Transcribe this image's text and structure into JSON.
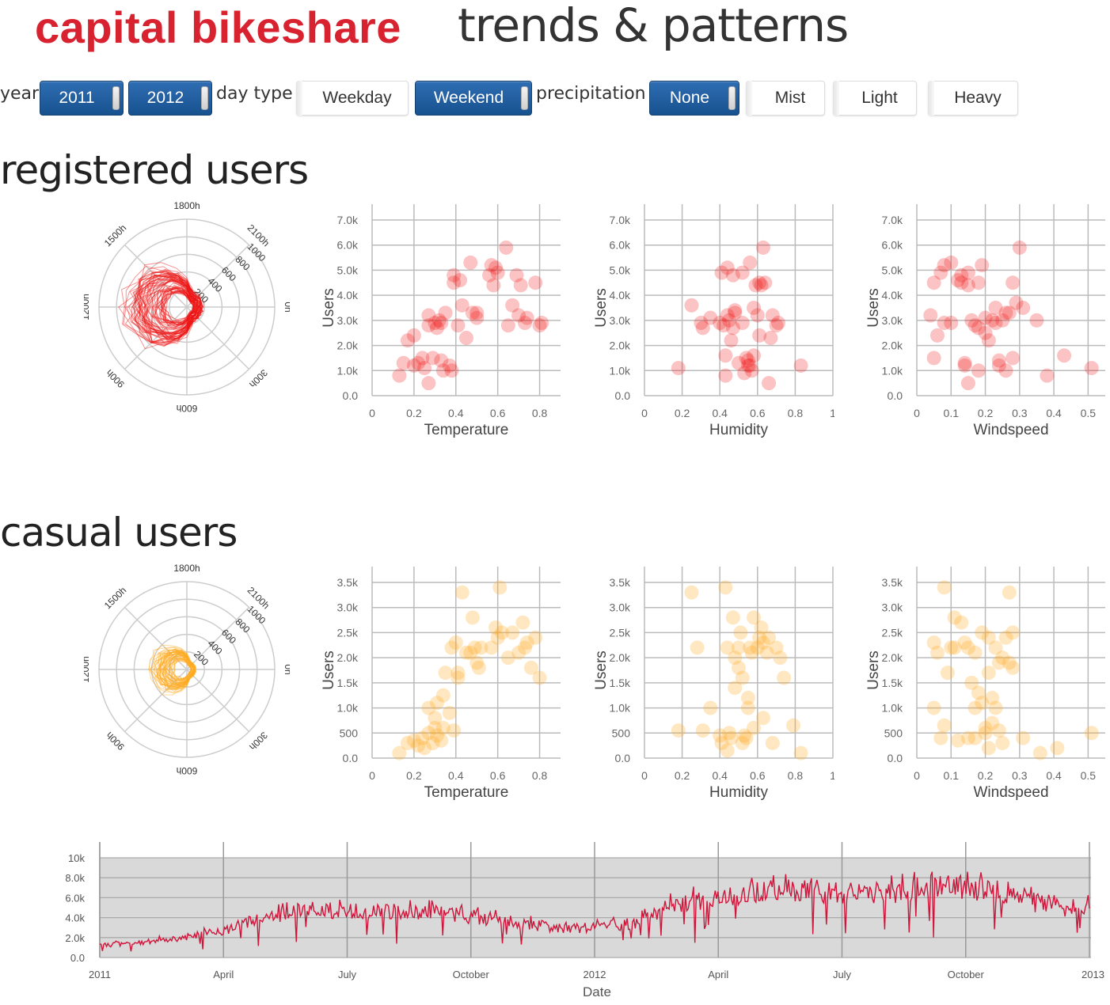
{
  "header": {
    "brand": "capital bikeshare",
    "tagline": "trends & patterns"
  },
  "filters": {
    "year_label": "year",
    "year_options": [
      {
        "label": "2011",
        "on": true
      },
      {
        "label": "2012",
        "on": true
      }
    ],
    "daytype_label": "day type",
    "daytype_options": [
      {
        "label": "Weekday",
        "on": false
      },
      {
        "label": "Weekend",
        "on": true
      }
    ],
    "precip_label": "precipitation",
    "precip_options": [
      {
        "label": "None",
        "on": true
      },
      {
        "label": "Mist",
        "on": false
      },
      {
        "label": "Light",
        "on": false
      },
      {
        "label": "Heavy",
        "on": false
      }
    ]
  },
  "sections": {
    "registered_title": "registered users",
    "casual_title": "casual users"
  },
  "colors": {
    "registered": "#ee1111",
    "casual": "#ffaa22",
    "timeline_line": "#d0143a",
    "grid": "#bbbbbb"
  },
  "radial": {
    "hour_labels": [
      "0h",
      "300h",
      "600h",
      "900h",
      "1200h",
      "1500h",
      "1800h",
      "2100h"
    ],
    "radius_labels": [
      "200",
      "400",
      "600",
      "800",
      "1000"
    ]
  },
  "chart_data": [
    {
      "type": "scatter",
      "group": "registered",
      "title": "",
      "xlabel": "Temperature",
      "ylabel": "Users",
      "xlim": [
        0,
        0.9
      ],
      "ylim": [
        0,
        7000
      ],
      "xticks": [
        "0",
        "0.2",
        "0.4",
        "0.6",
        "0.8"
      ],
      "yticks": [
        "0.0",
        "1.0k",
        "2.0k",
        "3.0k",
        "4.0k",
        "5.0k",
        "6.0k",
        "7.0k"
      ],
      "points": [
        [
          0.13,
          800
        ],
        [
          0.15,
          1300
        ],
        [
          0.17,
          2200
        ],
        [
          0.2,
          2400
        ],
        [
          0.2,
          1200
        ],
        [
          0.22,
          1300
        ],
        [
          0.24,
          1500
        ],
        [
          0.25,
          1100
        ],
        [
          0.27,
          500
        ],
        [
          0.27,
          2800
        ],
        [
          0.27,
          3200
        ],
        [
          0.29,
          1500
        ],
        [
          0.3,
          2900
        ],
        [
          0.31,
          2700
        ],
        [
          0.32,
          3000
        ],
        [
          0.33,
          1400
        ],
        [
          0.33,
          2900
        ],
        [
          0.34,
          1000
        ],
        [
          0.35,
          3300
        ],
        [
          0.37,
          1200
        ],
        [
          0.38,
          1000
        ],
        [
          0.39,
          4800
        ],
        [
          0.39,
          4500
        ],
        [
          0.41,
          2800
        ],
        [
          0.42,
          4600
        ],
        [
          0.43,
          3600
        ],
        [
          0.45,
          2300
        ],
        [
          0.47,
          5300
        ],
        [
          0.48,
          3300
        ],
        [
          0.5,
          3300
        ],
        [
          0.5,
          3100
        ],
        [
          0.56,
          4800
        ],
        [
          0.57,
          5200
        ],
        [
          0.58,
          4400
        ],
        [
          0.59,
          5100
        ],
        [
          0.6,
          4900
        ],
        [
          0.64,
          5900
        ],
        [
          0.65,
          2800
        ],
        [
          0.67,
          3600
        ],
        [
          0.69,
          4800
        ],
        [
          0.7,
          3200
        ],
        [
          0.71,
          4400
        ],
        [
          0.73,
          2900
        ],
        [
          0.74,
          3100
        ],
        [
          0.78,
          4500
        ],
        [
          0.8,
          2800
        ],
        [
          0.81,
          2900
        ]
      ]
    },
    {
      "type": "scatter",
      "group": "registered",
      "title": "",
      "xlabel": "Humidity",
      "ylabel": "Users",
      "xlim": [
        0,
        1.0
      ],
      "ylim": [
        0,
        7000
      ],
      "xticks": [
        "0",
        "0.2",
        "0.4",
        "0.6",
        "0.8",
        "1"
      ],
      "yticks": [
        "0.0",
        "1.0k",
        "2.0k",
        "3.0k",
        "4.0k",
        "5.0k",
        "6.0k",
        "7.0k"
      ],
      "points": [
        [
          0.18,
          1100
        ],
        [
          0.25,
          3600
        ],
        [
          0.3,
          2900
        ],
        [
          0.31,
          2700
        ],
        [
          0.35,
          3100
        ],
        [
          0.4,
          2900
        ],
        [
          0.41,
          4900
        ],
        [
          0.42,
          2800
        ],
        [
          0.43,
          1600
        ],
        [
          0.43,
          800
        ],
        [
          0.44,
          3200
        ],
        [
          0.44,
          5100
        ],
        [
          0.45,
          3000
        ],
        [
          0.46,
          2200
        ],
        [
          0.47,
          4800
        ],
        [
          0.47,
          2700
        ],
        [
          0.48,
          3400
        ],
        [
          0.48,
          3300
        ],
        [
          0.5,
          1300
        ],
        [
          0.52,
          4900
        ],
        [
          0.52,
          2900
        ],
        [
          0.53,
          900
        ],
        [
          0.54,
          1500
        ],
        [
          0.55,
          1200
        ],
        [
          0.55,
          1400
        ],
        [
          0.56,
          5300
        ],
        [
          0.56,
          1200
        ],
        [
          0.57,
          1000
        ],
        [
          0.58,
          1600
        ],
        [
          0.58,
          3500
        ],
        [
          0.59,
          4400
        ],
        [
          0.6,
          3200
        ],
        [
          0.61,
          2400
        ],
        [
          0.61,
          4500
        ],
        [
          0.62,
          4400
        ],
        [
          0.63,
          5900
        ],
        [
          0.64,
          4500
        ],
        [
          0.66,
          500
        ],
        [
          0.67,
          2300
        ],
        [
          0.68,
          3200
        ],
        [
          0.7,
          2800
        ],
        [
          0.71,
          2900
        ],
        [
          0.83,
          1200
        ]
      ]
    },
    {
      "type": "scatter",
      "group": "registered",
      "title": "",
      "xlabel": "Windspeed",
      "ylabel": "Users",
      "xlim": [
        0,
        0.55
      ],
      "ylim": [
        0,
        7000
      ],
      "xticks": [
        "0",
        "0.1",
        "0.2",
        "0.3",
        "0.4",
        "0.5"
      ],
      "yticks": [
        "0.0",
        "1.0k",
        "2.0k",
        "3.0k",
        "4.0k",
        "5.0k",
        "6.0k",
        "7.0k"
      ],
      "points": [
        [
          0.04,
          3200
        ],
        [
          0.05,
          1500
        ],
        [
          0.05,
          4500
        ],
        [
          0.06,
          2400
        ],
        [
          0.07,
          4900
        ],
        [
          0.08,
          2900
        ],
        [
          0.08,
          5200
        ],
        [
          0.1,
          2900
        ],
        [
          0.1,
          5300
        ],
        [
          0.12,
          4600
        ],
        [
          0.13,
          4800
        ],
        [
          0.13,
          4500
        ],
        [
          0.14,
          1200
        ],
        [
          0.14,
          1300
        ],
        [
          0.15,
          4900
        ],
        [
          0.15,
          4400
        ],
        [
          0.15,
          500
        ],
        [
          0.16,
          3000
        ],
        [
          0.17,
          2800
        ],
        [
          0.18,
          2700
        ],
        [
          0.18,
          4500
        ],
        [
          0.18,
          1000
        ],
        [
          0.19,
          5200
        ],
        [
          0.2,
          3100
        ],
        [
          0.2,
          2500
        ],
        [
          0.21,
          2200
        ],
        [
          0.22,
          3000
        ],
        [
          0.23,
          2900
        ],
        [
          0.23,
          3500
        ],
        [
          0.24,
          1200
        ],
        [
          0.24,
          1400
        ],
        [
          0.25,
          3000
        ],
        [
          0.26,
          3300
        ],
        [
          0.26,
          1000
        ],
        [
          0.27,
          3300
        ],
        [
          0.28,
          1500
        ],
        [
          0.28,
          4500
        ],
        [
          0.29,
          3700
        ],
        [
          0.3,
          5900
        ],
        [
          0.31,
          3500
        ],
        [
          0.35,
          3000
        ],
        [
          0.38,
          800
        ],
        [
          0.43,
          1600
        ],
        [
          0.51,
          1100
        ]
      ]
    },
    {
      "type": "scatter",
      "group": "casual",
      "title": "",
      "xlabel": "Temperature",
      "ylabel": "Users",
      "xlim": [
        0,
        0.9
      ],
      "ylim": [
        0,
        3500
      ],
      "xticks": [
        "0",
        "0.2",
        "0.4",
        "0.6",
        "0.8"
      ],
      "yticks": [
        "0.0",
        "500",
        "1.0k",
        "1.5k",
        "2.0k",
        "2.5k",
        "3.0k",
        "3.5k"
      ],
      "points": [
        [
          0.13,
          100
        ],
        [
          0.17,
          300
        ],
        [
          0.2,
          350
        ],
        [
          0.22,
          250
        ],
        [
          0.24,
          400
        ],
        [
          0.25,
          200
        ],
        [
          0.27,
          500
        ],
        [
          0.27,
          1000
        ],
        [
          0.29,
          300
        ],
        [
          0.3,
          600
        ],
        [
          0.3,
          800
        ],
        [
          0.31,
          1100
        ],
        [
          0.31,
          450
        ],
        [
          0.33,
          350
        ],
        [
          0.34,
          1250
        ],
        [
          0.34,
          600
        ],
        [
          0.35,
          1700
        ],
        [
          0.37,
          900
        ],
        [
          0.38,
          2200
        ],
        [
          0.39,
          550
        ],
        [
          0.4,
          2300
        ],
        [
          0.41,
          1700
        ],
        [
          0.41,
          1600
        ],
        [
          0.43,
          3300
        ],
        [
          0.45,
          2100
        ],
        [
          0.47,
          2100
        ],
        [
          0.48,
          2800
        ],
        [
          0.49,
          2200
        ],
        [
          0.5,
          1900
        ],
        [
          0.51,
          1800
        ],
        [
          0.52,
          2200
        ],
        [
          0.57,
          2200
        ],
        [
          0.59,
          2600
        ],
        [
          0.6,
          2400
        ],
        [
          0.61,
          3400
        ],
        [
          0.62,
          2500
        ],
        [
          0.65,
          2000
        ],
        [
          0.67,
          2500
        ],
        [
          0.7,
          2100
        ],
        [
          0.72,
          2700
        ],
        [
          0.73,
          2200
        ],
        [
          0.74,
          2300
        ],
        [
          0.76,
          1800
        ],
        [
          0.78,
          2400
        ],
        [
          0.8,
          1600
        ]
      ]
    },
    {
      "type": "scatter",
      "group": "casual",
      "title": "",
      "xlabel": "Humidity",
      "ylabel": "Users",
      "xlim": [
        0,
        1.0
      ],
      "ylim": [
        0,
        3500
      ],
      "xticks": [
        "0",
        "0.2",
        "0.4",
        "0.6",
        "0.8",
        "1"
      ],
      "yticks": [
        "0.0",
        "500",
        "1.0k",
        "1.5k",
        "2.0k",
        "2.5k",
        "3.0k",
        "3.5k"
      ],
      "points": [
        [
          0.18,
          550
        ],
        [
          0.25,
          3300
        ],
        [
          0.28,
          2200
        ],
        [
          0.31,
          550
        ],
        [
          0.35,
          1000
        ],
        [
          0.4,
          450
        ],
        [
          0.41,
          300
        ],
        [
          0.43,
          3400
        ],
        [
          0.44,
          2200
        ],
        [
          0.44,
          150
        ],
        [
          0.45,
          500
        ],
        [
          0.46,
          400
        ],
        [
          0.47,
          2800
        ],
        [
          0.48,
          1400
        ],
        [
          0.48,
          2000
        ],
        [
          0.5,
          1800
        ],
        [
          0.5,
          2200
        ],
        [
          0.51,
          2500
        ],
        [
          0.52,
          300
        ],
        [
          0.52,
          1600
        ],
        [
          0.53,
          450
        ],
        [
          0.54,
          400
        ],
        [
          0.55,
          1200
        ],
        [
          0.55,
          1000
        ],
        [
          0.56,
          2200
        ],
        [
          0.57,
          2100
        ],
        [
          0.58,
          2800
        ],
        [
          0.58,
          600
        ],
        [
          0.6,
          2200
        ],
        [
          0.61,
          2400
        ],
        [
          0.62,
          2600
        ],
        [
          0.63,
          800
        ],
        [
          0.63,
          2300
        ],
        [
          0.65,
          2100
        ],
        [
          0.66,
          2400
        ],
        [
          0.68,
          300
        ],
        [
          0.7,
          2200
        ],
        [
          0.72,
          2000
        ],
        [
          0.74,
          1600
        ],
        [
          0.79,
          650
        ],
        [
          0.83,
          100
        ]
      ]
    },
    {
      "type": "scatter",
      "group": "casual",
      "title": "",
      "xlabel": "Windspeed",
      "ylabel": "Users",
      "xlim": [
        0,
        0.55
      ],
      "ylim": [
        0,
        3500
      ],
      "xticks": [
        "0",
        "0.1",
        "0.2",
        "0.3",
        "0.4",
        "0.5"
      ],
      "yticks": [
        "0.0",
        "500",
        "1.0k",
        "1.5k",
        "2.0k",
        "2.5k",
        "3.0k",
        "3.5k"
      ],
      "points": [
        [
          0.05,
          2300
        ],
        [
          0.05,
          1000
        ],
        [
          0.06,
          2100
        ],
        [
          0.07,
          400
        ],
        [
          0.08,
          650
        ],
        [
          0.08,
          3400
        ],
        [
          0.09,
          1700
        ],
        [
          0.1,
          2200
        ],
        [
          0.11,
          2800
        ],
        [
          0.11,
          2200
        ],
        [
          0.12,
          350
        ],
        [
          0.13,
          2700
        ],
        [
          0.14,
          2300
        ],
        [
          0.15,
          2200
        ],
        [
          0.15,
          400
        ],
        [
          0.16,
          1500
        ],
        [
          0.17,
          2100
        ],
        [
          0.17,
          1000
        ],
        [
          0.17,
          400
        ],
        [
          0.18,
          1300
        ],
        [
          0.19,
          2500
        ],
        [
          0.19,
          1100
        ],
        [
          0.2,
          600
        ],
        [
          0.2,
          500
        ],
        [
          0.21,
          2400
        ],
        [
          0.21,
          1700
        ],
        [
          0.21,
          200
        ],
        [
          0.22,
          1200
        ],
        [
          0.22,
          700
        ],
        [
          0.23,
          2200
        ],
        [
          0.23,
          1000
        ],
        [
          0.24,
          1900
        ],
        [
          0.24,
          550
        ],
        [
          0.25,
          300
        ],
        [
          0.25,
          2000
        ],
        [
          0.26,
          2400
        ],
        [
          0.27,
          1900
        ],
        [
          0.27,
          3300
        ],
        [
          0.28,
          1800
        ],
        [
          0.28,
          2500
        ],
        [
          0.31,
          400
        ],
        [
          0.36,
          100
        ],
        [
          0.41,
          200
        ],
        [
          0.51,
          500
        ]
      ]
    },
    {
      "type": "line",
      "group": "timeline",
      "title": "",
      "xlabel": "Date",
      "ylabel": "",
      "xticks": [
        "2011",
        "April",
        "July",
        "October",
        "2012",
        "April",
        "July",
        "October",
        "2013"
      ],
      "yticks": [
        "0.0",
        "2.0k",
        "4.0k",
        "6.0k",
        "8.0k",
        "10k"
      ],
      "ylim": [
        0,
        10000
      ],
      "x_start": "2011-01-01",
      "x_end": "2013-01-01",
      "monthly_avg_users": [
        1200,
        1500,
        2000,
        2700,
        4000,
        4800,
        4600,
        4600,
        4600,
        4100,
        3600,
        3000,
        3000,
        3500,
        5500,
        6000,
        6500,
        6800,
        6500,
        6500,
        7000,
        7000,
        6500,
        5000
      ]
    }
  ]
}
